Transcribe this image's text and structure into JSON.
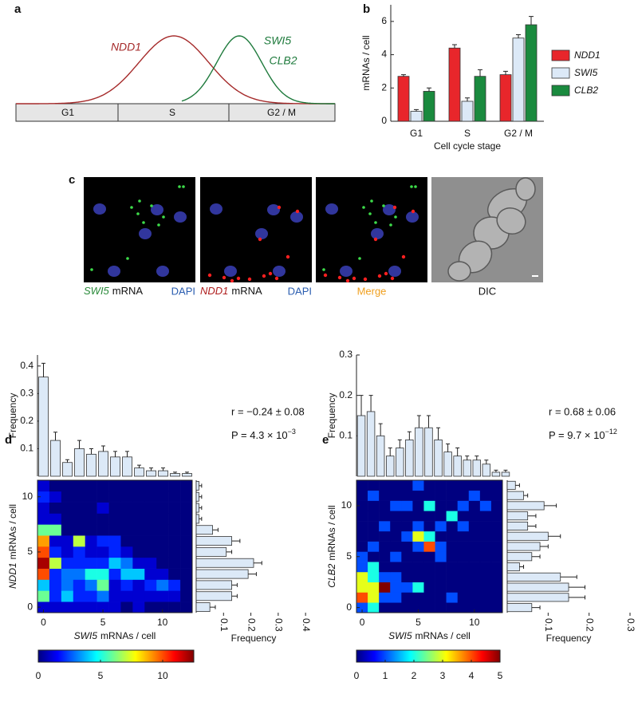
{
  "panel_labels": [
    "a",
    "b",
    "c",
    "d",
    "e"
  ],
  "diagram": {
    "curve_labels": [
      "NDD1",
      "SWI5",
      "CLB2"
    ],
    "phases": [
      "G1",
      "S",
      "G2 / M"
    ]
  },
  "micrographs": [
    {
      "gene": "SWI5",
      "label": "mRNA",
      "stain": "DAPI"
    },
    {
      "gene": "NDD1",
      "label": "mRNA",
      "stain": "DAPI"
    },
    {
      "label": "Merge"
    },
    {
      "label": "DIC"
    }
  ],
  "chart_data": [
    {
      "type": "bar",
      "categories": [
        "G1",
        "S",
        "G2 / M"
      ],
      "series": [
        {
          "name": "NDD1",
          "color": "#e8262b",
          "values": [
            2.7,
            4.4,
            2.8
          ],
          "errors": [
            0.1,
            0.2,
            0.2
          ]
        },
        {
          "name": "SWI5",
          "color": "#dce9f7",
          "values": [
            0.6,
            1.2,
            5.0
          ],
          "errors": [
            0.1,
            0.2,
            0.2
          ]
        },
        {
          "name": "CLB2",
          "color": "#1a8a3e",
          "values": [
            1.8,
            2.7,
            5.8
          ],
          "errors": [
            0.2,
            0.4,
            0.5
          ]
        }
      ],
      "ylim": [
        0,
        7
      ],
      "yticks": [
        0,
        2,
        4,
        6
      ],
      "ylabel": "mRNAs / cell",
      "xlabel": "Cell cycle stage"
    },
    {
      "type": "bar",
      "x": [
        0,
        1,
        2,
        3,
        4,
        5,
        6,
        7,
        8,
        9,
        10,
        11,
        12
      ],
      "values": [
        0.36,
        0.13,
        0.05,
        0.1,
        0.08,
        0.09,
        0.07,
        0.07,
        0.03,
        0.02,
        0.02,
        0.01,
        0.01
      ],
      "errors": [
        0.05,
        0.03,
        0.01,
        0.03,
        0.02,
        0.02,
        0.02,
        0.02,
        0.01,
        0.01,
        0.01,
        0.005,
        0.005
      ],
      "color": "#dce9f7",
      "xlim": [
        -0.5,
        12.5
      ],
      "ylim": [
        0,
        0.44
      ],
      "yticks": [
        0.1,
        0.2,
        0.3,
        0.4
      ],
      "ylabel": "Frequency",
      "annotations": {
        "r": "r = −0.24 ± 0.08",
        "p": "P = 4.3 × 10",
        "p_exponent": "−3"
      }
    },
    {
      "type": "barh",
      "y": [
        0,
        1,
        2,
        3,
        4,
        5,
        6,
        7,
        8,
        9,
        10,
        11
      ],
      "values": [
        0.05,
        0.13,
        0.13,
        0.19,
        0.21,
        0.11,
        0.13,
        0.06,
        0.01,
        0.01,
        0.01,
        0.01
      ],
      "errors": [
        0.02,
        0.02,
        0.02,
        0.03,
        0.03,
        0.02,
        0.03,
        0.02,
        0.01,
        0.01,
        0.01,
        0.01
      ],
      "color": "#dce9f7",
      "ylim": [
        -0.5,
        11.5
      ],
      "xlim": [
        0,
        0.42
      ],
      "xticks": [
        0.1,
        0.2,
        0.3,
        0.4
      ],
      "xlabel": "Frequency"
    },
    {
      "type": "heatmap",
      "x": [
        0,
        1,
        2,
        3,
        4,
        5,
        6,
        7,
        8,
        9,
        10,
        11,
        12
      ],
      "y": [
        0,
        1,
        2,
        3,
        4,
        5,
        6,
        7,
        8,
        9,
        10,
        11
      ],
      "z": [
        [
          1,
          1,
          1,
          1,
          1,
          1,
          1,
          0,
          1,
          0,
          0,
          0,
          0
        ],
        [
          6,
          2,
          4,
          2,
          2,
          3,
          1,
          1,
          1,
          1,
          1,
          1,
          0
        ],
        [
          4,
          2,
          3,
          2,
          3,
          6,
          1,
          2,
          1,
          2,
          3,
          2,
          0
        ],
        [
          10,
          2,
          3,
          3,
          5,
          5,
          2,
          4,
          4,
          1,
          1,
          0,
          0
        ],
        [
          12,
          7,
          2,
          2,
          2,
          2,
          4,
          3,
          1,
          1,
          0,
          0,
          0
        ],
        [
          10,
          2,
          1,
          2,
          1,
          1,
          2,
          1,
          0,
          0,
          0,
          0,
          0
        ],
        [
          9,
          1,
          1,
          7,
          1,
          2,
          2,
          0,
          0,
          0,
          0,
          0,
          0
        ],
        [
          6,
          6,
          0,
          0,
          0,
          0,
          0,
          0,
          0,
          0,
          0,
          0,
          0
        ],
        [
          1,
          1,
          0,
          0,
          0,
          0,
          0,
          0,
          0,
          0,
          0,
          0,
          0
        ],
        [
          1,
          0,
          0,
          0,
          0,
          1,
          0,
          0,
          0,
          0,
          0,
          0,
          0
        ],
        [
          2,
          1,
          0,
          0,
          0,
          0,
          0,
          0,
          0,
          0,
          0,
          0,
          0
        ],
        [
          1,
          0,
          0,
          0,
          0,
          0,
          0,
          0,
          0,
          0,
          0,
          0,
          0
        ]
      ],
      "xlim": [
        -0.5,
        12.5
      ],
      "ylim": [
        -0.5,
        11.5
      ],
      "xticks": [
        0,
        5,
        10
      ],
      "yticks": [
        0,
        5,
        10
      ],
      "xlabel": [
        "SWI5",
        "mRNAs / cell"
      ],
      "ylabel": [
        "NDD1",
        "mRNAs / cell"
      ],
      "colormap": "jet",
      "zlim": [
        0,
        12.5
      ],
      "zticks": [
        0,
        5,
        10
      ]
    },
    {
      "type": "bar",
      "x": [
        0,
        1,
        2,
        3,
        4,
        5,
        6,
        7,
        8,
        9,
        10,
        11,
        12,
        13,
        14,
        15
      ],
      "values": [
        0.15,
        0.16,
        0.1,
        0.05,
        0.07,
        0.09,
        0.12,
        0.12,
        0.09,
        0.06,
        0.05,
        0.04,
        0.04,
        0.03,
        0.01,
        0.01
      ],
      "errors": [
        0.05,
        0.04,
        0.03,
        0.02,
        0.02,
        0.02,
        0.03,
        0.03,
        0.03,
        0.02,
        0.02,
        0.01,
        0.01,
        0.01,
        0.005,
        0.005
      ],
      "color": "#dce9f7",
      "xlim": [
        -0.5,
        15.5
      ],
      "ylim": [
        0,
        0.3
      ],
      "yticks": [
        0.1,
        0.2,
        0.3
      ],
      "ylabel": "Frequency",
      "annotations": {
        "r": "r = 0.68 ± 0.06",
        "p": "P = 9.7 × 10",
        "p_exponent": "−12"
      }
    },
    {
      "type": "barh",
      "y": [
        0,
        1,
        2,
        3,
        4,
        5,
        6,
        7,
        8,
        9,
        10,
        11,
        12
      ],
      "values": [
        0.06,
        0.15,
        0.15,
        0.13,
        0.03,
        0.06,
        0.08,
        0.1,
        0.05,
        0.05,
        0.09,
        0.04,
        0.02
      ],
      "errors": [
        0.02,
        0.04,
        0.04,
        0.04,
        0.01,
        0.02,
        0.02,
        0.03,
        0.02,
        0.02,
        0.03,
        0.01,
        0.01
      ],
      "color": "#dce9f7",
      "ylim": [
        -0.5,
        12.5
      ],
      "xlim": [
        0,
        0.3
      ],
      "xticks": [
        0.1,
        0.2,
        0.3
      ],
      "xlabel": "Frequency"
    },
    {
      "type": "heatmap",
      "x": [
        0,
        1,
        2,
        3,
        4,
        5,
        6,
        7,
        8,
        9,
        10,
        11,
        12
      ],
      "y": [
        0,
        1,
        2,
        3,
        4,
        5,
        6,
        7,
        8,
        9,
        10,
        11,
        12
      ],
      "z": [
        [
          1,
          2,
          0,
          0,
          0,
          0,
          0,
          0,
          0,
          0,
          0,
          0,
          0
        ],
        [
          4,
          3,
          1,
          1,
          0,
          0,
          0,
          0,
          1,
          0,
          0,
          0,
          0
        ],
        [
          3,
          3,
          5,
          1,
          1,
          2,
          0,
          0,
          0,
          0,
          0,
          0,
          0
        ],
        [
          3,
          2,
          1,
          1,
          0,
          0,
          0,
          0,
          0,
          0,
          0,
          0,
          0
        ],
        [
          1,
          2,
          0,
          0,
          0,
          0,
          0,
          0,
          0,
          0,
          0,
          0,
          0
        ],
        [
          1,
          0,
          0,
          1,
          0,
          0,
          0,
          1,
          0,
          0,
          0,
          0,
          0
        ],
        [
          0,
          1,
          0,
          0,
          0,
          1,
          4,
          1,
          0,
          0,
          0,
          0,
          0
        ],
        [
          0,
          0,
          0,
          0,
          1,
          3,
          2,
          0,
          0,
          0,
          0,
          0,
          0
        ],
        [
          0,
          0,
          1,
          0,
          0,
          1,
          0,
          1,
          0,
          1,
          0,
          0,
          0
        ],
        [
          0,
          0,
          0,
          0,
          0,
          0,
          0,
          0,
          2,
          0,
          0,
          0,
          0
        ],
        [
          0,
          0,
          0,
          1,
          1,
          0,
          2,
          0,
          0,
          1,
          0,
          1,
          0
        ],
        [
          0,
          1,
          0,
          0,
          0,
          0,
          0,
          0,
          0,
          0,
          1,
          0,
          0
        ],
        [
          0,
          0,
          0,
          0,
          0,
          1,
          0,
          0,
          0,
          0,
          0,
          0,
          0
        ]
      ],
      "xlim": [
        -0.5,
        12.5
      ],
      "ylim": [
        -0.5,
        12.5
      ],
      "xticks": [
        0,
        5,
        10
      ],
      "yticks": [
        0,
        5,
        10
      ],
      "xlabel": [
        "SWI5",
        "mRNAs / cell"
      ],
      "ylabel": [
        "CLB2",
        "mRNAs / cell"
      ],
      "colormap": "jet",
      "zlim": [
        0,
        5
      ],
      "zticks": [
        0,
        1,
        2,
        3,
        4,
        5
      ]
    }
  ]
}
